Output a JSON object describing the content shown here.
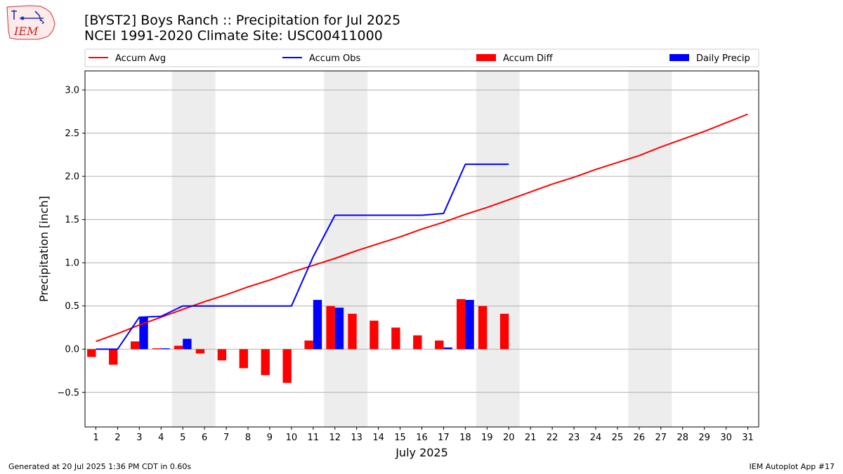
{
  "header": {
    "title_line1": "[BYST2] Boys Ranch :: Precipitation for Jul 2025",
    "title_line2": "NCEI 1991-2020 Climate Site: USC00411000",
    "logo_text": "IEM"
  },
  "footer": {
    "generated": "Generated at 20 Jul 2025 1:36 PM CDT in 0.60s",
    "app": "IEM Autoplot App #17"
  },
  "chart_data": {
    "type": "bar",
    "xlabel": "July 2025",
    "ylabel": "Precipitation [inch]",
    "xlim": [
      0.5,
      31.5
    ],
    "ylim": [
      -0.9,
      3.22
    ],
    "yticks": [
      -0.5,
      0.0,
      0.5,
      1.0,
      1.5,
      2.0,
      2.5,
      3.0
    ],
    "ytick_labels": [
      "−0.5",
      "0.0",
      "0.5",
      "1.0",
      "1.5",
      "2.0",
      "2.5",
      "3.0"
    ],
    "categories": [
      1,
      2,
      3,
      4,
      5,
      6,
      7,
      8,
      9,
      10,
      11,
      12,
      13,
      14,
      15,
      16,
      17,
      18,
      19,
      20,
      21,
      22,
      23,
      24,
      25,
      26,
      27,
      28,
      29,
      30,
      31
    ],
    "weekend_days": [
      5,
      6,
      12,
      13,
      19,
      20,
      26,
      27
    ],
    "grid": "horizontal",
    "legend_position": "top",
    "legend": [
      {
        "label": "Accum Avg",
        "kind": "line",
        "color": "#ff0000"
      },
      {
        "label": "Accum Obs",
        "kind": "line",
        "color": "#0000ff"
      },
      {
        "label": "Accum Diff",
        "kind": "bar",
        "color": "#ff0000"
      },
      {
        "label": "Daily Precip",
        "kind": "bar",
        "color": "#0000ff"
      }
    ],
    "series": [
      {
        "name": "Accum Avg",
        "type": "line",
        "color": "#ff0000",
        "x": [
          1,
          2,
          3,
          4,
          5,
          6,
          7,
          8,
          9,
          10,
          11,
          12,
          13,
          14,
          15,
          16,
          17,
          18,
          19,
          20,
          21,
          22,
          23,
          24,
          25,
          26,
          27,
          28,
          29,
          30,
          31
        ],
        "values": [
          0.09,
          0.18,
          0.28,
          0.37,
          0.46,
          0.55,
          0.63,
          0.72,
          0.8,
          0.89,
          0.97,
          1.05,
          1.14,
          1.22,
          1.3,
          1.39,
          1.47,
          1.56,
          1.64,
          1.73,
          1.82,
          1.91,
          1.99,
          2.08,
          2.16,
          2.24,
          2.34,
          2.43,
          2.52,
          2.62,
          2.72
        ]
      },
      {
        "name": "Accum Obs",
        "type": "line",
        "color": "#0000ff",
        "x": [
          1,
          2,
          3,
          4,
          5,
          6,
          7,
          8,
          9,
          10,
          11,
          12,
          13,
          14,
          15,
          16,
          17,
          18,
          19,
          20
        ],
        "values": [
          0.0,
          0.0,
          0.37,
          0.38,
          0.5,
          0.5,
          0.5,
          0.5,
          0.5,
          0.5,
          1.07,
          1.55,
          1.55,
          1.55,
          1.55,
          1.55,
          1.57,
          2.14,
          2.14,
          2.14
        ]
      },
      {
        "name": "Accum Diff",
        "type": "bar",
        "color": "#ff0000",
        "offset": -0.2,
        "x": [
          1,
          2,
          3,
          4,
          5,
          6,
          7,
          8,
          9,
          10,
          11,
          12,
          13,
          14,
          15,
          16,
          17,
          18,
          19,
          20
        ],
        "values": [
          -0.09,
          -0.18,
          0.09,
          0.01,
          0.04,
          -0.05,
          -0.13,
          -0.22,
          -0.3,
          -0.39,
          0.1,
          0.5,
          0.41,
          0.33,
          0.25,
          0.16,
          0.1,
          0.58,
          0.5,
          0.41
        ]
      },
      {
        "name": "Daily Precip",
        "type": "bar",
        "color": "#0000ff",
        "offset": 0.2,
        "x": [
          1,
          2,
          3,
          4,
          5,
          6,
          7,
          8,
          9,
          10,
          11,
          12,
          13,
          14,
          15,
          16,
          17,
          18,
          19,
          20
        ],
        "values": [
          0.0,
          0.0,
          0.37,
          0.01,
          0.12,
          0.0,
          0.0,
          0.0,
          0.0,
          0.0,
          0.57,
          0.48,
          0.0,
          0.0,
          0.0,
          0.0,
          0.02,
          0.57,
          0.0,
          0.0
        ]
      }
    ]
  }
}
